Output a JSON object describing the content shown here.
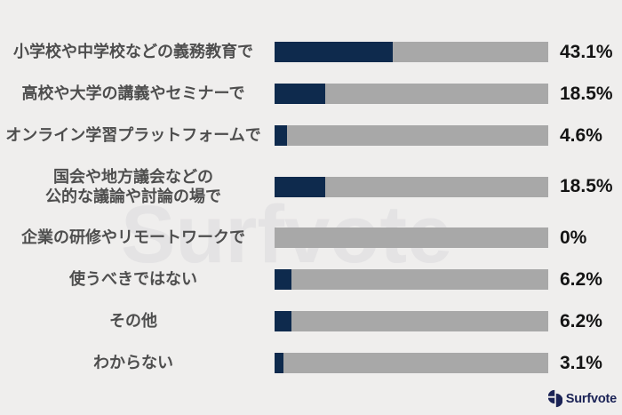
{
  "chart_data": {
    "type": "bar",
    "orientation": "horizontal",
    "title": "",
    "xlabel": "",
    "ylabel": "",
    "xlim": [
      0,
      100
    ],
    "grid": false,
    "legend": false,
    "categories": [
      "小学校や中学校などの義務教育で",
      "高校や大学の講義やセミナーで",
      "オンライン学習プラットフォームで",
      "国会や地方議会などの\n公的な議論や討論の場で",
      "企業の研修やリモートワークで",
      "使うべきではない",
      "その他",
      "わからない"
    ],
    "values": [
      43.1,
      18.5,
      4.6,
      18.5,
      0,
      6.2,
      6.2,
      3.1
    ],
    "value_labels": [
      "43.1%",
      "18.5%",
      "4.6%",
      "18.5%",
      "0%",
      "6.2%",
      "6.2%",
      "3.1%"
    ],
    "bar_color": "#0e2a4d",
    "track_color": "#a8a8a8"
  },
  "watermark_text": "Surfvote",
  "footer": {
    "brand_name": "Surfvote",
    "brand_color": "#1b2356"
  },
  "colors": {
    "background": "#efeeed",
    "watermark": "#e4e3e4",
    "category_text": "#4e4e4e",
    "value_text": "#141414"
  }
}
